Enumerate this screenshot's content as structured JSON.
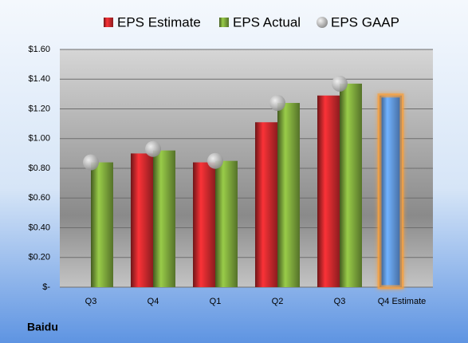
{
  "chart_data": {
    "type": "bar",
    "categories": [
      "Q3",
      "Q4",
      "Q1",
      "Q2",
      "Q3",
      "Q4 Estimate"
    ],
    "series": [
      {
        "name": "EPS Estimate",
        "color": "#c8282c",
        "point_colors": [
          null,
          null,
          null,
          null,
          null,
          "#5b8fd6"
        ],
        "glow": "#f5a040",
        "values": [
          null,
          0.9,
          0.84,
          1.11,
          1.29,
          1.29
        ]
      },
      {
        "name": "EPS Actual",
        "color": "#7aa33a",
        "values": [
          0.84,
          0.92,
          0.85,
          1.24,
          1.37,
          null
        ]
      },
      {
        "name": "EPS GAAP",
        "type": "scatter",
        "color": "#a8a8a8",
        "values": [
          0.84,
          0.93,
          0.85,
          1.24,
          1.37,
          null
        ]
      }
    ],
    "ylim": [
      0,
      1.6
    ],
    "yticks": [
      {
        "value": 0,
        "label": "$-"
      },
      {
        "value": 0.2,
        "label": "$0.20"
      },
      {
        "value": 0.4,
        "label": "$0.40"
      },
      {
        "value": 0.6,
        "label": "$0.60"
      },
      {
        "value": 0.8,
        "label": "$0.80"
      },
      {
        "value": 1.0,
        "label": "$1.00"
      },
      {
        "value": 1.2,
        "label": "$1.20"
      },
      {
        "value": 1.4,
        "label": "$1.40"
      },
      {
        "value": 1.6,
        "label": "$1.60"
      }
    ],
    "grid": true,
    "footer": "Baidu"
  }
}
